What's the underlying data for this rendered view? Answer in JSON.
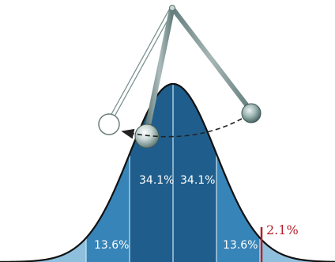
{
  "labels": {
    "center_left": "34.1%",
    "center_right": "34.1%",
    "side_left": "13.6%",
    "side_right": "13.6%",
    "tail": "2.1%"
  },
  "colors": {
    "background": "#ffffff",
    "outline": "#111111",
    "band_center": "#1f5e8c",
    "band_side": "#3784b8",
    "band_outer": "#8ec0dd",
    "divider": "#cfe3f1",
    "tail_marker": "#b21f2a",
    "tail_label": "#b21f2a",
    "arrow": "#222222"
  },
  "icons": {
    "pivot": "pendulum-pivot",
    "bob_left": "pendulum-bob-ghost",
    "bob_center": "pendulum-bob",
    "bob_right": "pendulum-bob-ghost"
  }
}
